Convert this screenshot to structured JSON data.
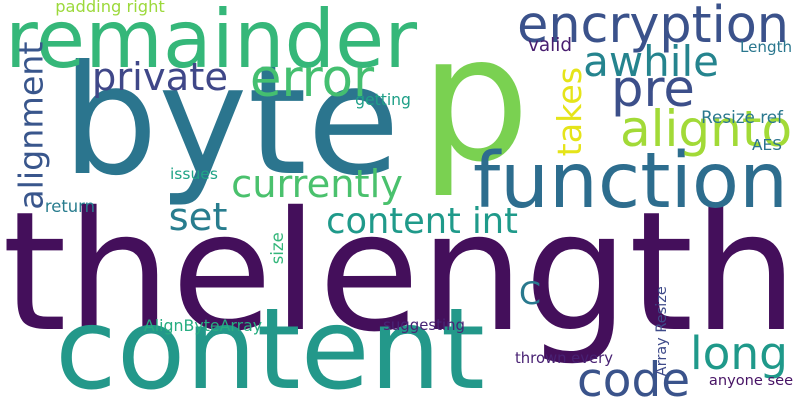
{
  "words": [
    {
      "text": "thelength",
      "color": "#440f5b"
    },
    {
      "text": "p",
      "color": "#7ad151"
    },
    {
      "text": "byte",
      "color": "#2b758e"
    },
    {
      "text": "content",
      "color": "#23988a"
    },
    {
      "text": "remainder",
      "color": "#35b779"
    },
    {
      "text": "function",
      "color": "#2d6d8e"
    },
    {
      "text": "encryption",
      "color": "#3b528b"
    },
    {
      "text": "content int",
      "color": "#1f9a8a"
    },
    {
      "text": "error",
      "color": "#44bf70"
    },
    {
      "text": "code",
      "color": "#3a538b"
    },
    {
      "text": "long",
      "color": "#1f998a"
    },
    {
      "text": "alignto",
      "color": "#a2da37"
    },
    {
      "text": "pre",
      "color": "#3c4f8a"
    },
    {
      "text": "awhile",
      "color": "#25848e"
    },
    {
      "text": "private",
      "color": "#3f4788"
    },
    {
      "text": "currently",
      "color": "#4ac16d"
    },
    {
      "text": "alignment",
      "color": "#39568c"
    },
    {
      "text": "takes",
      "color": "#e5e419"
    },
    {
      "text": "set",
      "color": "#287d8e"
    },
    {
      "text": "C",
      "color": "#29798e"
    },
    {
      "text": "padding right",
      "color": "#9cd93b"
    },
    {
      "text": "valid",
      "color": "#481d6f"
    },
    {
      "text": "Length",
      "color": "#2a778e"
    },
    {
      "text": "Resize ref",
      "color": "#2a788e"
    },
    {
      "text": "getting",
      "color": "#1fa088"
    },
    {
      "text": "issues",
      "color": "#20a386"
    },
    {
      "text": "AES",
      "color": "#2b748e"
    },
    {
      "text": "return",
      "color": "#287c8e"
    },
    {
      "text": "size",
      "color": "#33b67a"
    },
    {
      "text": "AlignByteArray",
      "color": "#27ad81"
    },
    {
      "text": "suggesting",
      "color": "#482475"
    },
    {
      "text": "Array Resize",
      "color": "#3e4a89"
    },
    {
      "text": "thrown every",
      "color": "#482173"
    },
    {
      "text": "anyone see",
      "color": "#471365"
    }
  ]
}
